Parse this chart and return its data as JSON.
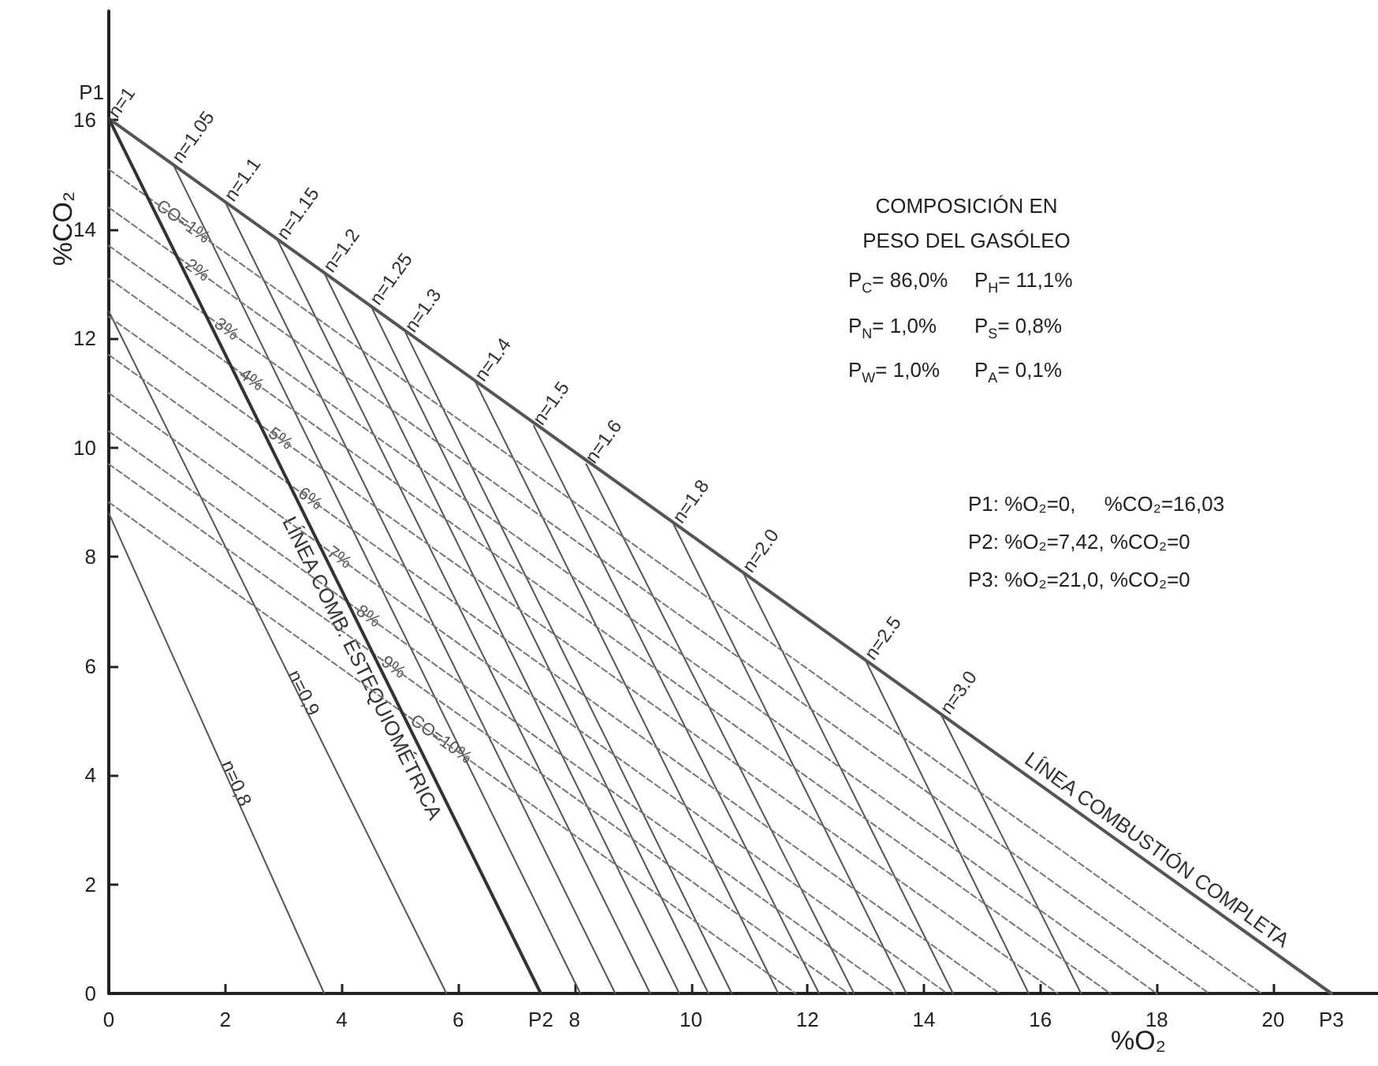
{
  "chart_data": {
    "type": "line",
    "xlabel": "%O₂",
    "ylabel": "%CO₂",
    "xlim": [
      0,
      21.8
    ],
    "ylim": [
      0,
      18
    ],
    "xticks": [
      0,
      2,
      4,
      6,
      {
        "value": 7.42,
        "label": "P2"
      },
      8,
      10,
      12,
      14,
      16,
      18,
      20,
      {
        "value": 21,
        "label": "P3"
      }
    ],
    "yticks": [
      0,
      2,
      4,
      6,
      8,
      10,
      12,
      14,
      16
    ],
    "marker": "none",
    "line_style": "solid",
    "series": [
      {
        "name": "LÍNEA COMBUSTIÓN COMPLETA",
        "color": "#555555",
        "x": [
          0,
          21
        ],
        "values": [
          16.03,
          0
        ]
      },
      {
        "name": "LÍNEA COMB. ESTEQUIOMÉTRICA",
        "color": "#333333",
        "x": [
          0,
          7.42
        ],
        "values": [
          16.03,
          0
        ]
      },
      {
        "name": "n=1.05",
        "color": "#555555",
        "x": [
          1.1,
          8.1
        ],
        "values": [
          15.2,
          0
        ]
      },
      {
        "name": "n=1.1",
        "color": "#555555",
        "x": [
          2.0,
          8.7
        ],
        "values": [
          14.5,
          0
        ]
      },
      {
        "name": "n=1.15",
        "color": "#555555",
        "x": [
          2.9,
          9.3
        ],
        "values": [
          13.8,
          0
        ]
      },
      {
        "name": "n=1.2",
        "color": "#555555",
        "x": [
          3.7,
          9.8
        ],
        "values": [
          13.2,
          0
        ]
      },
      {
        "name": "n=1.25",
        "color": "#555555",
        "x": [
          4.5,
          10.3
        ],
        "values": [
          12.6,
          0
        ]
      },
      {
        "name": "n=1.3",
        "color": "#555555",
        "x": [
          5.1,
          10.7
        ],
        "values": [
          12.1,
          0
        ]
      },
      {
        "name": "n=1.4",
        "color": "#555555",
        "x": [
          6.3,
          11.5
        ],
        "values": [
          11.2,
          0
        ]
      },
      {
        "name": "n=1.5",
        "color": "#555555",
        "x": [
          7.3,
          12.2
        ],
        "values": [
          10.4,
          0
        ]
      },
      {
        "name": "n=1.6",
        "color": "#555555",
        "x": [
          8.2,
          12.8
        ],
        "values": [
          9.7,
          0
        ]
      },
      {
        "name": "n=1.8",
        "color": "#555555",
        "x": [
          9.7,
          13.7
        ],
        "values": [
          8.6,
          0
        ]
      },
      {
        "name": "n=2.0",
        "color": "#555555",
        "x": [
          10.9,
          14.5
        ],
        "values": [
          7.7,
          0
        ]
      },
      {
        "name": "n=2.5",
        "color": "#555555",
        "x": [
          13.0,
          15.8
        ],
        "values": [
          6.1,
          0
        ]
      },
      {
        "name": "n=3.0",
        "color": "#555555",
        "x": [
          14.3,
          16.7
        ],
        "values": [
          5.1,
          0
        ]
      },
      {
        "name": "n=0,9",
        "color": "#555555",
        "x": [
          0,
          5.8
        ],
        "values": [
          12.5,
          0
        ]
      },
      {
        "name": "n=0,8",
        "color": "#555555",
        "x": [
          0,
          3.7
        ],
        "values": [
          8.8,
          0
        ]
      },
      {
        "name": "CO=1%",
        "color": "#777777",
        "line_style": "dashed",
        "x": [
          0,
          19.8
        ],
        "values": [
          15.1,
          0
        ]
      },
      {
        "name": "2%",
        "color": "#777777",
        "line_style": "dashed",
        "x": [
          0,
          18.9
        ],
        "values": [
          14.4,
          0
        ]
      },
      {
        "name": "3%",
        "color": "#777777",
        "line_style": "dashed",
        "x": [
          0,
          18.0
        ],
        "values": [
          13.7,
          0
        ]
      },
      {
        "name": "4%",
        "color": "#777777",
        "line_style": "dashed",
        "x": [
          0,
          17.2
        ],
        "values": [
          13.1,
          0
        ]
      },
      {
        "name": "5%",
        "color": "#777777",
        "line_style": "dashed",
        "x": [
          0,
          16.3
        ],
        "values": [
          12.4,
          0
        ]
      },
      {
        "name": "6%",
        "color": "#777777",
        "line_style": "dashed",
        "x": [
          0,
          15.3
        ],
        "values": [
          11.7,
          0
        ]
      },
      {
        "name": "7%",
        "color": "#777777",
        "line_style": "dashed",
        "x": [
          0,
          14.4
        ],
        "values": [
          11.0,
          0
        ]
      },
      {
        "name": "8%",
        "color": "#777777",
        "line_style": "dashed",
        "x": [
          0,
          13.5
        ],
        "values": [
          10.3,
          0
        ]
      },
      {
        "name": "9%",
        "color": "#777777",
        "line_style": "dashed",
        "x": [
          0,
          12.7
        ],
        "values": [
          9.7,
          0
        ]
      },
      {
        "name": "CO=10%",
        "color": "#777777",
        "line_style": "dashed",
        "x": [
          0,
          11.8
        ],
        "values": [
          9.0,
          0
        ]
      }
    ],
    "annotations": [
      {
        "text": "P1",
        "x": 0,
        "y": 16.03
      },
      {
        "text": "n=1",
        "x": 0,
        "y": 16.03
      },
      "COMPOSICIÓN EN PESO DEL GASÓLEO",
      "P$_{C}$= 86,0%",
      "P$_{H}$= 11,1%",
      "P$_{N}$= 1,0%",
      "P$_{S}$= 0,8%",
      "P$_{W}$= 1,0%",
      "P$_{A}$= 0,1%",
      "P1: %O₂=0,     %CO₂=16,03",
      "P2: %O₂=7,42, %CO₂=0",
      "P3: %O₂=21,0, %CO₂=0"
    ]
  }
}
